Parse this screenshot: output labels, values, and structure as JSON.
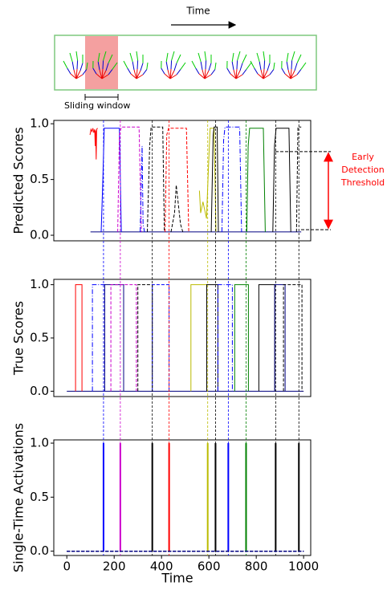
{
  "diagram": {
    "time_label": "Time",
    "window_label": "Sliding window"
  },
  "chart_data": [
    {
      "type": "line",
      "ylabel": "Predicted Scores",
      "xlim": [
        -55,
        1030
      ],
      "ylim": [
        -0.05,
        1.03
      ],
      "yticks": [
        {
          "value": 0,
          "label": "0.0"
        },
        {
          "value": 0.5,
          "label": "0.5"
        },
        {
          "value": 1,
          "label": "1.0"
        }
      ],
      "annotation": [
        "Early",
        "Detection",
        "Threshold"
      ],
      "annotation_color": "#ff0000",
      "threshold_lines": [
        0.05,
        0.75
      ],
      "series": [
        {
          "color": "#000080",
          "style": "solid",
          "x": [
            100,
            990
          ],
          "values": [
            0.03,
            0.03
          ]
        },
        {
          "color": "#ff0000",
          "style": "solid",
          "x": [
            98,
            102,
            106,
            110,
            114,
            118,
            120,
            122,
            124,
            126,
            130
          ],
          "values": [
            0.9,
            0.95,
            0.93,
            0.96,
            0.92,
            0.95,
            0.8,
            0.94,
            0.68,
            0.95,
            0.96
          ]
        },
        {
          "color": "#0000ff",
          "style": "solid",
          "x": [
            145,
            152,
            158,
            222,
            230
          ],
          "values": [
            0.03,
            0.5,
            0.96,
            0.96,
            0.03
          ]
        },
        {
          "color": "#cc00cc",
          "style": "dashed",
          "x": [
            215,
            222,
            230,
            305,
            315
          ],
          "values": [
            0.03,
            0.9,
            0.97,
            0.97,
            0.03
          ]
        },
        {
          "color": "#0000ff",
          "style": "dashdot",
          "x": [
            310,
            318,
            322,
            328
          ],
          "values": [
            0.03,
            0.8,
            0.1,
            0.03
          ]
        },
        {
          "color": "#000000",
          "style": "dashed",
          "x": [
            340,
            350,
            356,
            405,
            412
          ],
          "values": [
            0.03,
            0.8,
            0.97,
            0.97,
            0.03
          ]
        },
        {
          "color": "#ff0000",
          "style": "dashed",
          "x": [
            415,
            422,
            430,
            505,
            515
          ],
          "values": [
            0.03,
            0.9,
            0.96,
            0.96,
            0.03
          ]
        },
        {
          "color": "#000000",
          "style": "dashed",
          "x": [
            440,
            455,
            462,
            470,
            480,
            490
          ],
          "values": [
            0.03,
            0.2,
            0.45,
            0.3,
            0.1,
            0.03
          ]
        },
        {
          "color": "#bbbb00",
          "style": "solid",
          "x": [
            560,
            565,
            575,
            590,
            598,
            605,
            622,
            630
          ],
          "values": [
            0.4,
            0.2,
            0.3,
            0.15,
            0.6,
            0.96,
            0.96,
            0.03
          ]
        },
        {
          "color": "#000000",
          "style": "solid",
          "x": [
            610,
            618,
            622,
            635,
            640
          ],
          "values": [
            0.03,
            0.9,
            0.97,
            0.97,
            0.03
          ]
        },
        {
          "color": "#0000ff",
          "style": "dashdot",
          "x": [
            655,
            662,
            668,
            730,
            738
          ],
          "values": [
            0.03,
            0.85,
            0.97,
            0.97,
            0.03
          ]
        },
        {
          "color": "#008000",
          "style": "solid",
          "x": [
            760,
            766,
            772,
            830,
            838
          ],
          "values": [
            0.03,
            0.8,
            0.96,
            0.96,
            0.03
          ]
        },
        {
          "color": "#000000",
          "style": "solid",
          "x": [
            870,
            877,
            884,
            938,
            946
          ],
          "values": [
            0.03,
            0.8,
            0.96,
            0.96,
            0.03
          ]
        },
        {
          "color": "#000000",
          "style": "dashed",
          "x": [
            970,
            976,
            980,
            990
          ],
          "values": [
            0.03,
            0.97,
            0.97,
            0.97
          ]
        }
      ]
    },
    {
      "type": "line",
      "ylabel": "True Scores",
      "xlim": [
        -55,
        1030
      ],
      "ylim": [
        -0.05,
        1.05
      ],
      "yticks": [
        {
          "value": 0,
          "label": "0.0"
        },
        {
          "value": 0.5,
          "label": "0.5"
        },
        {
          "value": 1,
          "label": "1.0"
        }
      ],
      "series": [
        {
          "color": "#000080",
          "style": "solid",
          "x": [
            0,
            1000
          ],
          "values": [
            0,
            0
          ]
        },
        {
          "color": "#ff0000",
          "style": "solid",
          "x": [
            37,
            37,
            64,
            64
          ],
          "values": [
            0,
            1,
            1,
            0
          ]
        },
        {
          "color": "#0000ff",
          "style": "dashdot",
          "x": [
            108,
            108,
            160,
            160
          ],
          "values": [
            0,
            1,
            1,
            0
          ]
        },
        {
          "color": "#000080",
          "style": "solid",
          "x": [
            160,
            160,
            240,
            240
          ],
          "values": [
            0,
            1,
            1,
            0
          ]
        },
        {
          "color": "#cc00cc",
          "style": "dashed",
          "x": [
            186,
            186,
            294,
            294
          ],
          "values": [
            0,
            1,
            1,
            0
          ]
        },
        {
          "color": "#000000",
          "style": "dashed",
          "x": [
            300,
            300,
            361,
            361
          ],
          "values": [
            0,
            1,
            1,
            0
          ]
        },
        {
          "color": "#0000ff",
          "style": "dashed",
          "x": [
            361,
            361,
            432,
            432
          ],
          "values": [
            0,
            1,
            1,
            0
          ]
        },
        {
          "color": "#bbbb00",
          "style": "solid",
          "x": [
            524,
            524,
            591,
            591
          ],
          "values": [
            0,
            1,
            1,
            0
          ]
        },
        {
          "color": "#000000",
          "style": "solid",
          "x": [
            591,
            591,
            638,
            638
          ],
          "values": [
            0,
            1,
            1,
            0
          ]
        },
        {
          "color": "#0000ff",
          "style": "dashdot",
          "x": [
            638,
            638,
            699,
            699
          ],
          "values": [
            0,
            1,
            1,
            0
          ]
        },
        {
          "color": "#008000",
          "style": "solid",
          "x": [
            709,
            709,
            767,
            767
          ],
          "values": [
            0,
            1,
            1,
            0
          ]
        },
        {
          "color": "#000000",
          "style": "solid",
          "x": [
            811,
            811,
            878,
            878
          ],
          "values": [
            0,
            1,
            1,
            0
          ]
        },
        {
          "color": "#000080",
          "style": "solid",
          "x": [
            878,
            878,
            922,
            922
          ],
          "values": [
            0,
            1,
            1,
            0
          ]
        },
        {
          "color": "#000000",
          "style": "dashed",
          "x": [
            915,
            915,
            993,
            993
          ],
          "values": [
            0,
            1,
            1,
            0
          ]
        }
      ]
    },
    {
      "type": "spike",
      "ylabel": "Single-Time Activations",
      "xlabel": "Time",
      "xlim": [
        -55,
        1030
      ],
      "ylim": [
        -0.04,
        1.03
      ],
      "yticks": [
        {
          "value": 0,
          "label": "0.0"
        },
        {
          "value": 0.5,
          "label": "0.5"
        },
        {
          "value": 1,
          "label": "1.0"
        }
      ],
      "xticks": [
        0,
        200,
        400,
        600,
        800,
        1000
      ],
      "series": [
        {
          "color": "#0000ff",
          "x": [
            155
          ],
          "values": [
            1
          ]
        },
        {
          "color": "#cc00cc",
          "x": [
            226
          ],
          "values": [
            1
          ]
        },
        {
          "color": "#000000",
          "x": [
            361
          ],
          "values": [
            1
          ]
        },
        {
          "color": "#ff0000",
          "x": [
            432
          ],
          "values": [
            1
          ]
        },
        {
          "color": "#bbbb00",
          "x": [
            595
          ],
          "values": [
            1
          ]
        },
        {
          "color": "#000000",
          "x": [
            628
          ],
          "values": [
            1
          ]
        },
        {
          "color": "#0000ff",
          "x": [
            682
          ],
          "values": [
            1
          ]
        },
        {
          "color": "#008000",
          "x": [
            757
          ],
          "values": [
            1
          ]
        },
        {
          "color": "#000000",
          "x": [
            882
          ],
          "values": [
            1
          ]
        },
        {
          "color": "#000000",
          "x": [
            980
          ],
          "values": [
            1
          ]
        }
      ]
    }
  ]
}
